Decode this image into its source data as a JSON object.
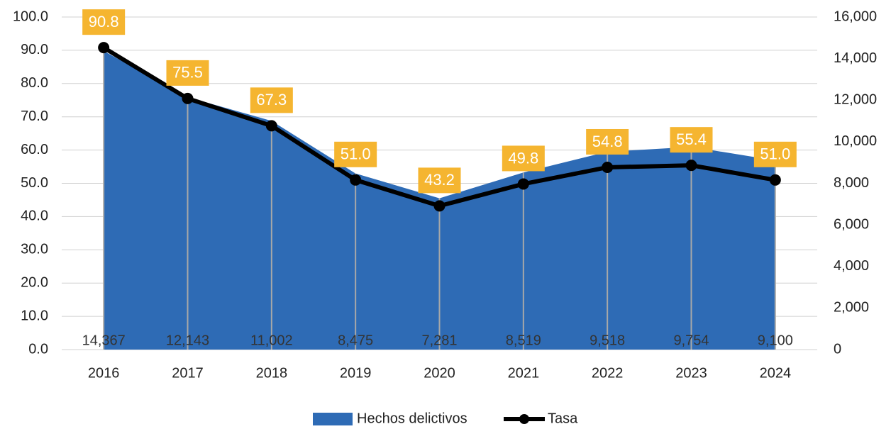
{
  "chart_data": {
    "type": "area",
    "categories": [
      "2016",
      "2017",
      "2018",
      "2019",
      "2020",
      "2021",
      "2022",
      "2023",
      "2024"
    ],
    "series": [
      {
        "name": "Hechos delictivos",
        "type": "area",
        "axis": "y2",
        "color": "#2e6bb5",
        "values": [
          14367,
          12143,
          11002,
          8475,
          7281,
          8519,
          9518,
          9754,
          9100
        ],
        "value_labels": [
          "14,367",
          "12,143",
          "11,002",
          "8,475",
          "7,281",
          "8,519",
          "9,518",
          "9,754",
          "9,100"
        ]
      },
      {
        "name": "Tasa",
        "type": "line",
        "color": "#000000",
        "values": [
          90.8,
          75.5,
          67.3,
          51.0,
          43.2,
          49.8,
          54.8,
          55.4,
          51.0
        ],
        "value_labels": [
          "90.8",
          "75.5",
          "67.3",
          "51.0",
          "43.2",
          "49.8",
          "54.8",
          "55.4",
          "51.0"
        ]
      }
    ],
    "ylim": [
      0,
      100
    ],
    "yticks": [
      {
        "value": 0,
        "label": "0.0"
      },
      {
        "value": 10,
        "label": "10.0"
      },
      {
        "value": 20,
        "label": "20.0"
      },
      {
        "value": 30,
        "label": "30.0"
      },
      {
        "value": 40,
        "label": "40.0"
      },
      {
        "value": 50,
        "label": "50.0"
      },
      {
        "value": 60,
        "label": "60.0"
      },
      {
        "value": 70,
        "label": "70.0"
      },
      {
        "value": 80,
        "label": "80.0"
      },
      {
        "value": 90,
        "label": "90.0"
      },
      {
        "value": 100,
        "label": "100.0"
      }
    ],
    "y2lim": [
      0,
      16000
    ],
    "y2ticks": [
      0,
      {
        "value": 2000,
        "label": "2,000"
      },
      {
        "value": 4000,
        "label": "4,000"
      },
      {
        "value": 6000,
        "label": "6,000"
      },
      {
        "value": 8000,
        "label": "8,000"
      },
      {
        "value": 10000,
        "label": "10,000"
      },
      {
        "value": 12000,
        "label": "12,000"
      },
      {
        "value": 14000,
        "label": "14,000"
      },
      {
        "value": 16000,
        "label": "16,000"
      }
    ],
    "grid": true,
    "legend": "bottom",
    "label_box_color": "#f5b530"
  }
}
